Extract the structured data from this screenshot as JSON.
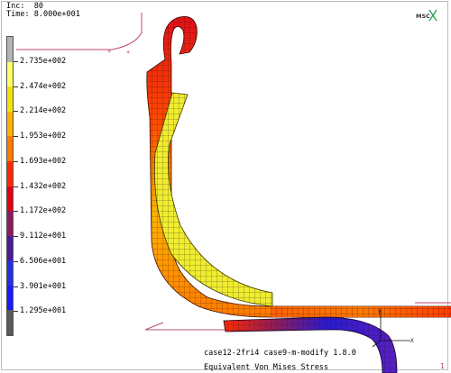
{
  "header": {
    "inc_label": "Inc:",
    "inc_value": "80",
    "time_label": "Time:",
    "time_value": "8.000e+001"
  },
  "logo": {
    "text": "MSC"
  },
  "legend": {
    "labels": [
      "2.735e+002",
      "2.474e+002",
      "2.214e+002",
      "1.953e+002",
      "1.693e+002",
      "1.432e+002",
      "1.172e+002",
      "9.112e+001",
      "6.506e+001",
      "3.901e+001",
      "1.295e+001"
    ],
    "colors": [
      "#b4b4b4",
      "#ffff66",
      "#f2e20a",
      "#ffb300",
      "#ff7a00",
      "#ff2a00",
      "#e00012",
      "#8c1c5a",
      "#4a1a9c",
      "#2233dd",
      "#1a1aff",
      "#5a5a5a"
    ]
  },
  "footer": {
    "line1": "case12-2fri4 case9-m-modify 1.8.0",
    "line2": "Equivalent Von Mises Stress"
  },
  "page_number": "1"
}
